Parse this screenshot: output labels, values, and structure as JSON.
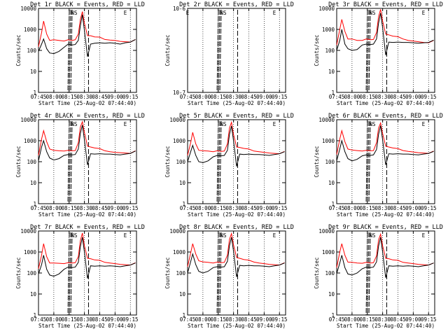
{
  "chart_data": [
    {
      "type": "line",
      "title": "Det 1r BLACK = Events, RED = LLD",
      "xlabel": "Start Time (25-Aug-02 07:44:40)",
      "ylabel": "Counts/sec",
      "yscale": "log",
      "ylim": [
        1,
        10000
      ],
      "xlim": [
        "07:45",
        "09:21"
      ],
      "grid": false,
      "xticks": [
        "07:45",
        "08:00",
        "08:15",
        "08:30",
        "08:45",
        "09:00",
        "09:15"
      ],
      "yticks": [
        "1",
        "10",
        "100",
        "1000",
        "10000"
      ],
      "markers": [
        {
          "text": "NS",
          "time": "08:20"
        },
        {
          "text": "E",
          "time": "09:10"
        }
      ],
      "x": [
        "07:45",
        "07:48",
        "07:50",
        "07:53",
        "07:56",
        "08:00",
        "08:05",
        "08:10",
        "08:14",
        "08:18",
        "08:21",
        "08:24",
        "08:26",
        "08:28",
        "08:30",
        "08:33",
        "08:36",
        "08:40",
        "08:45",
        "08:50",
        "08:55",
        "09:00",
        "09:05",
        "09:10",
        "09:15",
        "09:20"
      ],
      "series": [
        {
          "name": "RED",
          "color": "#ff0000",
          "values": [
            150,
            700,
            2500,
            600,
            300,
            320,
            300,
            280,
            320,
            300,
            320,
            600,
            3000,
            7000,
            2000,
            500,
            500,
            440,
            430,
            330,
            310,
            300,
            270,
            260,
            250,
            330
          ]
        },
        {
          "name": "BLACK",
          "color": "#000000",
          "values": [
            90,
            200,
            350,
            120,
            75,
            70,
            90,
            140,
            200,
            180,
            190,
            300,
            1500,
            5000,
            900,
            50,
            200,
            220,
            230,
            220,
            230,
            220,
            200,
            230,
            250,
            330
          ]
        }
      ]
    },
    {
      "type": "line",
      "title": "Det 2r BLACK = Events, RED = LLD",
      "xlabel": "Start Time (25-Aug-02 07:44:40)",
      "ylabel": "Counts/sec",
      "yscale": "log",
      "ylim": [
        1e-07,
        1e-06
      ],
      "xlim": [
        "07:45",
        "09:21"
      ],
      "grid": false,
      "xticks": [
        "07:45",
        "08:00",
        "08:15",
        "08:30",
        "08:45",
        "09:00",
        "09:15"
      ],
      "yticks": [
        "10^-7",
        "10^-6"
      ],
      "markers": [
        {
          "text": "E",
          "time": "07:45"
        },
        {
          "text": "NS",
          "time": "08:20"
        },
        {
          "text": "E",
          "time": "09:10"
        }
      ],
      "series": []
    },
    {
      "type": "line",
      "title": "Det 3r BLACK = Events, RED = LLD",
      "xlabel": "Start Time (25-Aug-02 07:44:40)",
      "ylabel": "Counts/sec",
      "yscale": "log",
      "ylim": [
        1,
        10000
      ],
      "xlim": [
        "07:45",
        "09:21"
      ],
      "grid": false,
      "xticks": [
        "07:45",
        "08:00",
        "08:15",
        "08:30",
        "08:45",
        "09:00",
        "09:15"
      ],
      "yticks": [
        "1",
        "10",
        "100",
        "1000",
        "10000"
      ],
      "markers": [
        {
          "text": "NS",
          "time": "08:20"
        },
        {
          "text": "E",
          "time": "09:10"
        }
      ],
      "x": [
        "07:45",
        "07:48",
        "07:50",
        "07:53",
        "07:56",
        "08:00",
        "08:05",
        "08:10",
        "08:14",
        "08:18",
        "08:21",
        "08:24",
        "08:26",
        "08:28",
        "08:30",
        "08:33",
        "08:36",
        "08:40",
        "08:45",
        "08:50",
        "08:55",
        "09:00",
        "09:05",
        "09:10",
        "09:15",
        "09:20"
      ],
      "series": [
        {
          "name": "RED",
          "color": "#ff0000",
          "values": [
            180,
            1000,
            3000,
            800,
            350,
            350,
            300,
            300,
            350,
            320,
            330,
            700,
            4000,
            9000,
            2500,
            600,
            550,
            480,
            450,
            350,
            300,
            280,
            260,
            240,
            230,
            300
          ]
        },
        {
          "name": "BLACK",
          "color": "#000000",
          "values": [
            100,
            300,
            1000,
            200,
            120,
            100,
            110,
            180,
            200,
            190,
            200,
            350,
            2000,
            6000,
            1200,
            60,
            250,
            240,
            250,
            240,
            240,
            230,
            220,
            230,
            240,
            310
          ]
        }
      ]
    },
    {
      "type": "line",
      "title": "Det 4r BLACK = Events, RED = LLD",
      "xlabel": "Start Time (25-Aug-02 07:44:40)",
      "ylabel": "Counts/sec",
      "yscale": "log",
      "ylim": [
        1,
        10000
      ],
      "xlim": [
        "07:45",
        "09:21"
      ],
      "grid": false,
      "xticks": [
        "07:45",
        "08:00",
        "08:15",
        "08:30",
        "08:45",
        "09:00",
        "09:15"
      ],
      "yticks": [
        "1",
        "10",
        "100",
        "1000",
        "10000"
      ],
      "markers": [
        {
          "text": "NS",
          "time": "08:20"
        },
        {
          "text": "E",
          "time": "09:10"
        }
      ],
      "x": [
        "07:45",
        "07:48",
        "07:50",
        "07:53",
        "07:56",
        "08:00",
        "08:05",
        "08:10",
        "08:14",
        "08:18",
        "08:21",
        "08:24",
        "08:26",
        "08:28",
        "08:30",
        "08:33",
        "08:36",
        "08:40",
        "08:45",
        "08:50",
        "08:55",
        "09:00",
        "09:05",
        "09:10",
        "09:15",
        "09:20"
      ],
      "series": [
        {
          "name": "RED",
          "color": "#ff0000",
          "values": [
            200,
            1200,
            3000,
            900,
            400,
            350,
            330,
            320,
            350,
            330,
            340,
            800,
            4500,
            8000,
            2500,
            550,
            500,
            450,
            420,
            330,
            300,
            280,
            270,
            260,
            250,
            330
          ]
        },
        {
          "name": "BLACK",
          "color": "#000000",
          "values": [
            110,
            500,
            1000,
            300,
            150,
            120,
            140,
            200,
            220,
            210,
            220,
            400,
            2200,
            5500,
            1100,
            70,
            240,
            230,
            240,
            230,
            230,
            220,
            210,
            230,
            250,
            320
          ]
        }
      ]
    },
    {
      "type": "line",
      "title": "Det 5r BLACK = Events, RED = LLD",
      "xlabel": "Start Time (25-Aug-02 07:44:40)",
      "ylabel": "Counts/sec",
      "yscale": "log",
      "ylim": [
        1,
        10000
      ],
      "xlim": [
        "07:45",
        "09:21"
      ],
      "grid": false,
      "xticks": [
        "07:45",
        "08:00",
        "08:15",
        "08:30",
        "08:45",
        "09:00",
        "09:15"
      ],
      "yticks": [
        "1",
        "10",
        "100",
        "1000",
        "10000"
      ],
      "markers": [
        {
          "text": "NS",
          "time": "08:20"
        },
        {
          "text": "E",
          "time": "09:10"
        }
      ],
      "x": [
        "07:45",
        "07:48",
        "07:50",
        "07:53",
        "07:56",
        "08:00",
        "08:05",
        "08:10",
        "08:14",
        "08:18",
        "08:21",
        "08:24",
        "08:26",
        "08:28",
        "08:30",
        "08:33",
        "08:36",
        "08:40",
        "08:45",
        "08:50",
        "08:55",
        "09:00",
        "09:05",
        "09:10",
        "09:15",
        "09:20"
      ],
      "series": [
        {
          "name": "RED",
          "color": "#ff0000",
          "values": [
            200,
            800,
            2500,
            700,
            350,
            330,
            320,
            300,
            330,
            310,
            320,
            700,
            4000,
            7500,
            2000,
            500,
            480,
            430,
            400,
            320,
            300,
            280,
            260,
            250,
            240,
            310
          ]
        },
        {
          "name": "BLACK",
          "color": "#000000",
          "values": [
            100,
            300,
            600,
            200,
            100,
            90,
            110,
            170,
            200,
            190,
            200,
            350,
            2000,
            5000,
            1000,
            60,
            230,
            220,
            230,
            220,
            220,
            210,
            200,
            220,
            240,
            300
          ]
        }
      ]
    },
    {
      "type": "line",
      "title": "Det 6r BLACK = Events, RED = LLD",
      "xlabel": "Start Time (25-Aug-02 07:44:40)",
      "ylabel": "Counts/sec",
      "yscale": "log",
      "ylim": [
        1,
        10000
      ],
      "xlim": [
        "07:45",
        "09:21"
      ],
      "grid": false,
      "xticks": [
        "07:45",
        "08:00",
        "08:15",
        "08:30",
        "08:45",
        "09:00",
        "09:15"
      ],
      "yticks": [
        "1",
        "10",
        "100",
        "1000",
        "10000"
      ],
      "markers": [
        {
          "text": "NS",
          "time": "08:20"
        },
        {
          "text": "E",
          "time": "09:10"
        }
      ],
      "x": [
        "07:45",
        "07:48",
        "07:50",
        "07:53",
        "07:56",
        "08:00",
        "08:05",
        "08:10",
        "08:14",
        "08:18",
        "08:21",
        "08:24",
        "08:26",
        "08:28",
        "08:30",
        "08:33",
        "08:36",
        "08:40",
        "08:45",
        "08:50",
        "08:55",
        "09:00",
        "09:05",
        "09:10",
        "09:15",
        "09:20"
      ],
      "series": [
        {
          "name": "RED",
          "color": "#ff0000",
          "values": [
            220,
            1200,
            3000,
            900,
            400,
            360,
            340,
            320,
            350,
            330,
            340,
            800,
            4000,
            7000,
            2200,
            550,
            500,
            450,
            420,
            340,
            310,
            290,
            270,
            260,
            250,
            320
          ]
        },
        {
          "name": "BLACK",
          "color": "#000000",
          "values": [
            110,
            400,
            1000,
            300,
            140,
            110,
            130,
            190,
            210,
            200,
            210,
            380,
            2000,
            5200,
            1100,
            70,
            240,
            230,
            240,
            230,
            230,
            220,
            210,
            230,
            250,
            310
          ]
        }
      ]
    },
    {
      "type": "line",
      "title": "Det 7r BLACK = Events, RED = LLD",
      "xlabel": "Start Time (25-Aug-02 07:44:40)",
      "ylabel": "Counts/sec",
      "yscale": "log",
      "ylim": [
        1,
        10000
      ],
      "xlim": [
        "07:45",
        "09:21"
      ],
      "grid": false,
      "xticks": [
        "07:45",
        "08:00",
        "08:15",
        "08:30",
        "08:45",
        "09:00",
        "09:15"
      ],
      "yticks": [
        "1",
        "10",
        "100",
        "1000",
        "10000"
      ],
      "markers": [
        {
          "text": "NS",
          "time": "08:20"
        },
        {
          "text": "E",
          "time": "09:10"
        }
      ],
      "x": [
        "07:45",
        "07:48",
        "07:50",
        "07:53",
        "07:56",
        "08:00",
        "08:05",
        "08:10",
        "08:14",
        "08:18",
        "08:21",
        "08:24",
        "08:26",
        "08:28",
        "08:30",
        "08:33",
        "08:36",
        "08:40",
        "08:45",
        "08:50",
        "08:55",
        "09:00",
        "09:05",
        "09:10",
        "09:15",
        "09:20"
      ],
      "series": [
        {
          "name": "RED",
          "color": "#ff0000",
          "values": [
            160,
            700,
            2500,
            600,
            300,
            300,
            290,
            280,
            310,
            300,
            310,
            600,
            3500,
            8000,
            2000,
            500,
            480,
            420,
            400,
            320,
            300,
            280,
            260,
            250,
            240,
            310
          ]
        },
        {
          "name": "BLACK",
          "color": "#000000",
          "values": [
            90,
            250,
            700,
            150,
            80,
            70,
            90,
            150,
            190,
            180,
            190,
            320,
            1800,
            5000,
            1000,
            55,
            220,
            210,
            220,
            210,
            220,
            210,
            200,
            220,
            240,
            300
          ]
        }
      ]
    },
    {
      "type": "line",
      "title": "Det 8r BLACK = Events, RED = LLD",
      "xlabel": "Start Time (25-Aug-02 07:44:40)",
      "ylabel": "Counts/sec",
      "yscale": "log",
      "ylim": [
        1,
        10000
      ],
      "xlim": [
        "07:45",
        "09:21"
      ],
      "grid": false,
      "xticks": [
        "07:45",
        "08:00",
        "08:15",
        "08:30",
        "08:45",
        "09:00",
        "09:15"
      ],
      "yticks": [
        "1",
        "10",
        "100",
        "1000",
        "10000"
      ],
      "markers": [
        {
          "text": "NS",
          "time": "08:20"
        },
        {
          "text": "E",
          "time": "09:10"
        }
      ],
      "x": [
        "07:45",
        "07:48",
        "07:50",
        "07:53",
        "07:56",
        "08:00",
        "08:05",
        "08:10",
        "08:14",
        "08:18",
        "08:21",
        "08:24",
        "08:26",
        "08:28",
        "08:30",
        "08:33",
        "08:36",
        "08:40",
        "08:45",
        "08:50",
        "08:55",
        "09:00",
        "09:05",
        "09:10",
        "09:15",
        "09:20"
      ],
      "series": [
        {
          "name": "RED",
          "color": "#ff0000",
          "values": [
            200,
            900,
            2500,
            800,
            380,
            340,
            320,
            300,
            330,
            310,
            320,
            700,
            4000,
            7500,
            2200,
            550,
            500,
            440,
            410,
            330,
            300,
            280,
            260,
            250,
            240,
            310
          ]
        },
        {
          "name": "BLACK",
          "color": "#000000",
          "values": [
            100,
            350,
            800,
            250,
            120,
            100,
            120,
            180,
            200,
            190,
            200,
            360,
            2000,
            5000,
            1100,
            65,
            230,
            220,
            230,
            220,
            220,
            210,
            200,
            220,
            240,
            300
          ]
        }
      ]
    },
    {
      "type": "line",
      "title": "Det 9r BLACK = Events, RED = LLD",
      "xlabel": "Start Time (25-Aug-02 07:44:40)",
      "ylabel": "Counts/sec",
      "yscale": "log",
      "ylim": [
        1,
        10000
      ],
      "xlim": [
        "07:45",
        "09:21"
      ],
      "grid": false,
      "xticks": [
        "07:45",
        "08:00",
        "08:15",
        "08:30",
        "08:45",
        "09:00",
        "09:15"
      ],
      "yticks": [
        "1",
        "10",
        "100",
        "1000",
        "10000"
      ],
      "markers": [
        {
          "text": "NS",
          "time": "08:20"
        },
        {
          "text": "E",
          "time": "09:10"
        }
      ],
      "x": [
        "07:45",
        "07:48",
        "07:50",
        "07:53",
        "07:56",
        "08:00",
        "08:05",
        "08:10",
        "08:14",
        "08:18",
        "08:21",
        "08:24",
        "08:26",
        "08:28",
        "08:30",
        "08:33",
        "08:36",
        "08:40",
        "08:45",
        "08:50",
        "08:55",
        "09:00",
        "09:05",
        "09:10",
        "09:15",
        "09:20"
      ],
      "series": [
        {
          "name": "RED",
          "color": "#ff0000",
          "values": [
            180,
            1000,
            2500,
            700,
            330,
            320,
            300,
            290,
            320,
            300,
            310,
            650,
            3800,
            7000,
            2000,
            500,
            480,
            420,
            400,
            320,
            300,
            280,
            260,
            250,
            240,
            300
          ]
        },
        {
          "name": "BLACK",
          "color": "#000000",
          "values": [
            95,
            300,
            700,
            180,
            90,
            80,
            100,
            160,
            190,
            180,
            190,
            340,
            1900,
            5000,
            1000,
            60,
            220,
            210,
            220,
            210,
            220,
            210,
            200,
            220,
            240,
            300
          ]
        }
      ]
    }
  ]
}
